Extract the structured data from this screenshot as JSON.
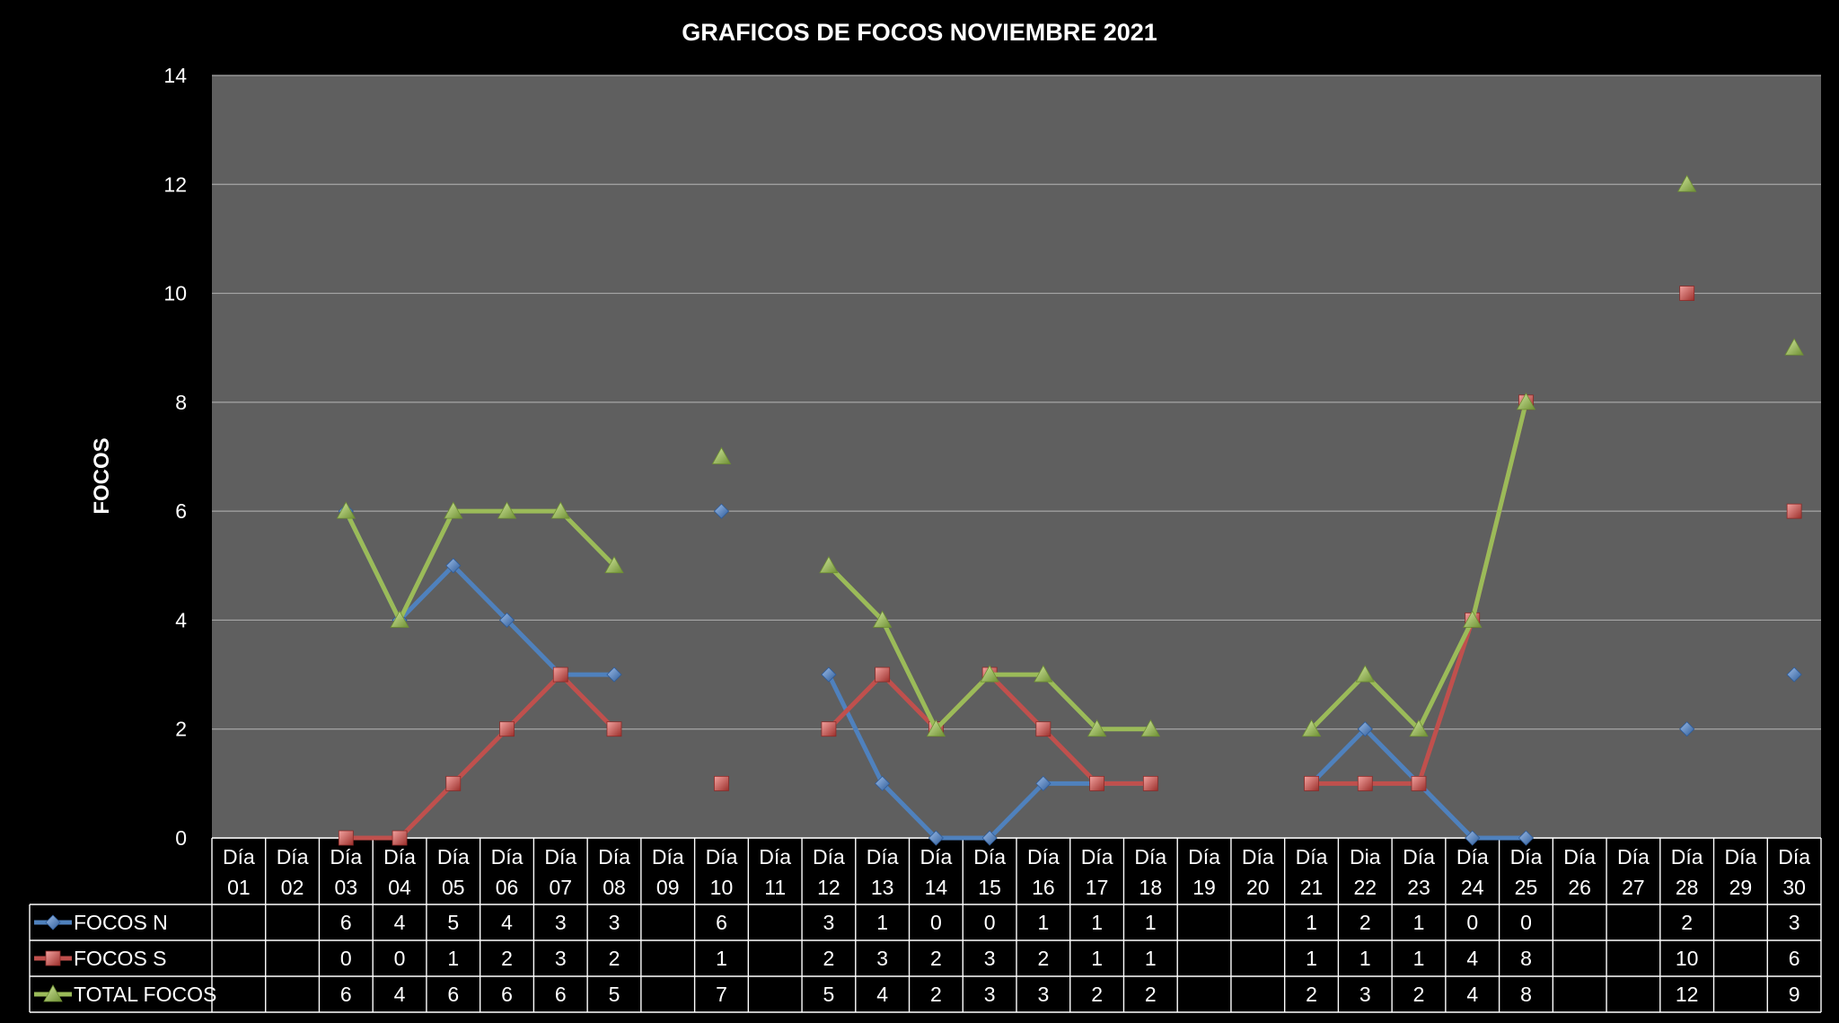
{
  "chart_data": {
    "type": "line",
    "title": "GRAFICOS DE FOCOS NOVIEMBRE 2021",
    "ylabel": "FOCOS",
    "xlabel": "",
    "ylim": [
      0,
      14
    ],
    "yticks": [
      "0",
      "2",
      "4",
      "6",
      "8",
      "10",
      "12",
      "14"
    ],
    "grid": true,
    "legend": "data-table-left",
    "categories": [
      [
        "Día",
        "01"
      ],
      [
        "Día",
        "02"
      ],
      [
        "Día",
        "03"
      ],
      [
        "Día",
        "04"
      ],
      [
        "Día",
        "05"
      ],
      [
        "Día",
        "06"
      ],
      [
        "Día",
        "07"
      ],
      [
        "Día",
        "08"
      ],
      [
        "Día",
        "09"
      ],
      [
        "Día",
        "10"
      ],
      [
        "Día",
        "11"
      ],
      [
        "Día",
        "12"
      ],
      [
        "Día",
        "13"
      ],
      [
        "Día",
        "14"
      ],
      [
        "Día",
        "15"
      ],
      [
        "Día",
        "16"
      ],
      [
        "Día",
        "17"
      ],
      [
        "Día",
        "18"
      ],
      [
        "Día",
        "19"
      ],
      [
        "Día",
        "20"
      ],
      [
        "Día",
        "21"
      ],
      [
        "Dia",
        "22"
      ],
      [
        "Día",
        "23"
      ],
      [
        "Día",
        "24"
      ],
      [
        "Día",
        "25"
      ],
      [
        "Día",
        "26"
      ],
      [
        "Día",
        "27"
      ],
      [
        "Día",
        "28"
      ],
      [
        "Día",
        "29"
      ],
      [
        "Día",
        "30"
      ]
    ],
    "series": [
      {
        "name": "FOCOS  N",
        "color": "#4F81BD",
        "marker": "diamond",
        "values": [
          null,
          null,
          6,
          4,
          5,
          4,
          3,
          3,
          null,
          6,
          null,
          3,
          1,
          0,
          0,
          1,
          1,
          1,
          null,
          null,
          1,
          2,
          1,
          0,
          0,
          null,
          null,
          2,
          null,
          3
        ]
      },
      {
        "name": "FOCOS  S",
        "color": "#C0504D",
        "marker": "square",
        "values": [
          null,
          null,
          0,
          0,
          1,
          2,
          3,
          2,
          null,
          1,
          null,
          2,
          3,
          2,
          3,
          2,
          1,
          1,
          null,
          null,
          1,
          1,
          1,
          4,
          8,
          null,
          null,
          10,
          null,
          6
        ]
      },
      {
        "name": "TOTAL FOCOS",
        "color": "#9BBB59",
        "marker": "triangle",
        "values": [
          null,
          null,
          6,
          4,
          6,
          6,
          6,
          5,
          null,
          7,
          null,
          5,
          4,
          2,
          3,
          3,
          2,
          2,
          null,
          null,
          2,
          3,
          2,
          4,
          8,
          null,
          null,
          12,
          null,
          9
        ]
      }
    ]
  }
}
